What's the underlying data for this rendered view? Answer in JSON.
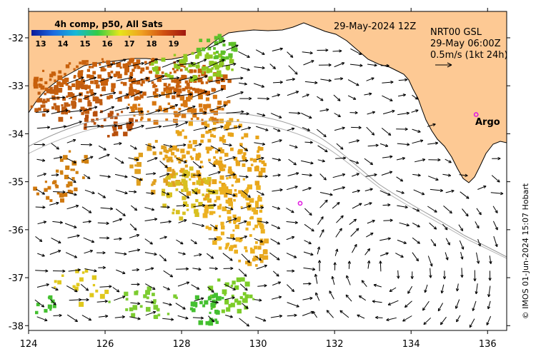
{
  "colorbar": {
    "title": "4h comp, p50, All Sats",
    "ticks": [
      "13",
      "14",
      "15",
      "16",
      "17",
      "18",
      "19"
    ],
    "colors": [
      "#0a1a9a",
      "#1e6be0",
      "#17b8d8",
      "#33cc44",
      "#e6e61a",
      "#f0a020",
      "#d05010",
      "#a01810"
    ]
  },
  "header": {
    "date": "29-May-2024 12Z",
    "product": "NRT00 GSL",
    "time": "29-May 06:00Z",
    "scale": "0.5m/s (1kt 24h)"
  },
  "labels": {
    "argo": "Argo"
  },
  "credit": "© IMOS 01-Jun-2024 15:07 Hobart",
  "axes": {
    "x_ticks": [
      "124",
      "126",
      "128",
      "130",
      "132",
      "134",
      "136"
    ],
    "y_ticks": [
      "-32",
      "-33",
      "-34",
      "-35",
      "-36",
      "-37",
      "-38"
    ],
    "lon_range": [
      124,
      136.5
    ],
    "lat_range": [
      -31.45,
      -38.1
    ]
  },
  "colors": {
    "land": "#fdc994",
    "frame": "#000000",
    "argo": "#e21ee2"
  },
  "markers": [
    {
      "name": "argo-float-coastal",
      "lon": 135.7,
      "lat": -33.6
    },
    {
      "name": "argo-float-offshore",
      "lon": 131.1,
      "lat": -35.45
    }
  ]
}
